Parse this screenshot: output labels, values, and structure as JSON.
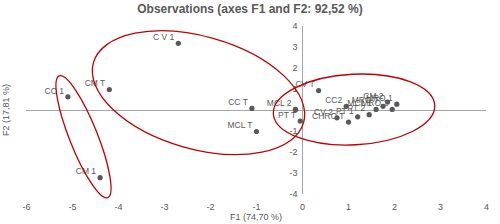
{
  "chart_data": {
    "type": "scatter",
    "title": "Observations (axes F1 and F2: 92,52 %)",
    "x_label": "F1 (74,70 %)",
    "y_label": "F2 (17,81 %)",
    "labels": [
      "CC 1",
      "CM 1",
      "CM T",
      "C V 1",
      "CC T",
      "MCL T",
      "CV T",
      "MCL 2",
      "PT T",
      "CC2",
      "CV 2",
      "CHRO T",
      "PT 1",
      "PT 2",
      "MCL 1",
      "MRO T",
      "CM 2",
      "MRO 1",
      "MRO 2"
    ],
    "x": [
      -5.1,
      -4.4,
      -4.2,
      -2.7,
      -1.1,
      -1.0,
      0.35,
      -0.15,
      -0.05,
      0.95,
      0.75,
      1.0,
      1.2,
      1.45,
      1.6,
      1.75,
      1.85,
      2.05,
      1.95
    ],
    "y": [
      0.65,
      -3.2,
      1.0,
      3.2,
      0.1,
      -1.0,
      0.95,
      0.05,
      -0.5,
      0.2,
      -0.35,
      -0.55,
      -0.3,
      -0.2,
      0.05,
      0.2,
      0.4,
      0.3,
      0.05
    ],
    "clusters": [
      [
        "CC 1",
        "CM 1"
      ],
      [
        "CM T",
        "C V 1",
        "CC T",
        "MCL T"
      ],
      [
        "CV T",
        "MCL 2",
        "PT T",
        "CC2",
        "CV 2",
        "CHRO T",
        "PT 1",
        "PT 2",
        "MCL 1",
        "MRO T",
        "CM 2",
        "MRO 1",
        "MRO 2"
      ]
    ],
    "color": "#595959",
    "xlim": [
      -6,
      4
    ],
    "xticks": [
      -6,
      -5,
      -4,
      -3,
      -2,
      -1,
      0,
      1,
      2,
      3,
      4
    ],
    "ylim": [
      -4,
      4
    ],
    "yticks": [
      -4,
      -3,
      -2,
      -1,
      0,
      1,
      2,
      3,
      4
    ],
    "grid": false
  }
}
